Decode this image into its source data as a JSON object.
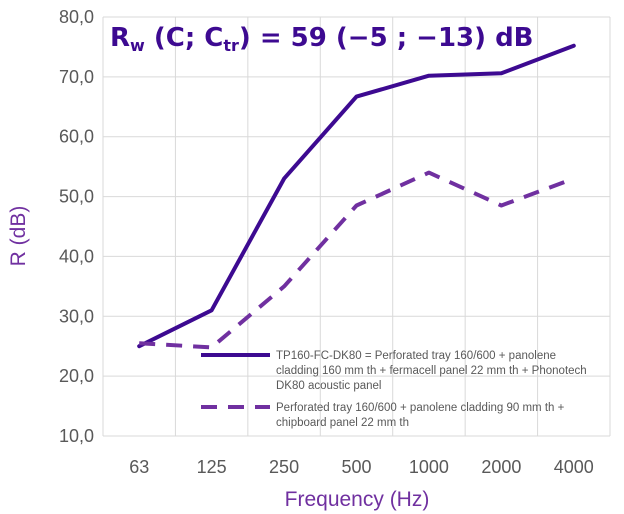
{
  "chart_data": {
    "type": "line",
    "title": "",
    "rating": {
      "r": "R",
      "w": "w",
      "open": " (C; C",
      "tr": "tr",
      "close": ") = 59 (",
      "spectrum": "−5 ; −13",
      "end": ") dB"
    },
    "xlabel": "Frequency (Hz)",
    "ylabel": "R (dB)",
    "categories": [
      "63",
      "125",
      "250",
      "500",
      "1000",
      "2000",
      "4000"
    ],
    "y_ticks": [
      "10,0",
      "20,0",
      "30,0",
      "40,0",
      "50,0",
      "60,0",
      "70,0",
      "80,0"
    ],
    "ylim": [
      10,
      80
    ],
    "grid": true,
    "legend_position": "bottom-right",
    "series": [
      {
        "name_lines": [
          "TP160-FC-DK80 = Perforated tray 160/600 + panolene",
          "cladding 160 mm th + fermacell panel 22 mm th + Phonotech",
          "DK80 acoustic panel"
        ],
        "values": [
          25.0,
          31.0,
          53.0,
          66.7,
          70.2,
          70.6,
          75.2
        ],
        "color": "#3d0a91",
        "style": "solid"
      },
      {
        "name_lines": [
          "Perforated tray 160/600 + panolene cladding 90 mm th +",
          "chipboard panel 22 mm th"
        ],
        "values": [
          25.5,
          24.8,
          35.0,
          48.5,
          54.0,
          48.5,
          53.0
        ],
        "color": "#7030a0",
        "style": "dashed"
      }
    ],
    "colors": {
      "axis_text": "#7030a0",
      "rating_text": "#3d0a91",
      "grid": "#d9d9d9"
    }
  }
}
